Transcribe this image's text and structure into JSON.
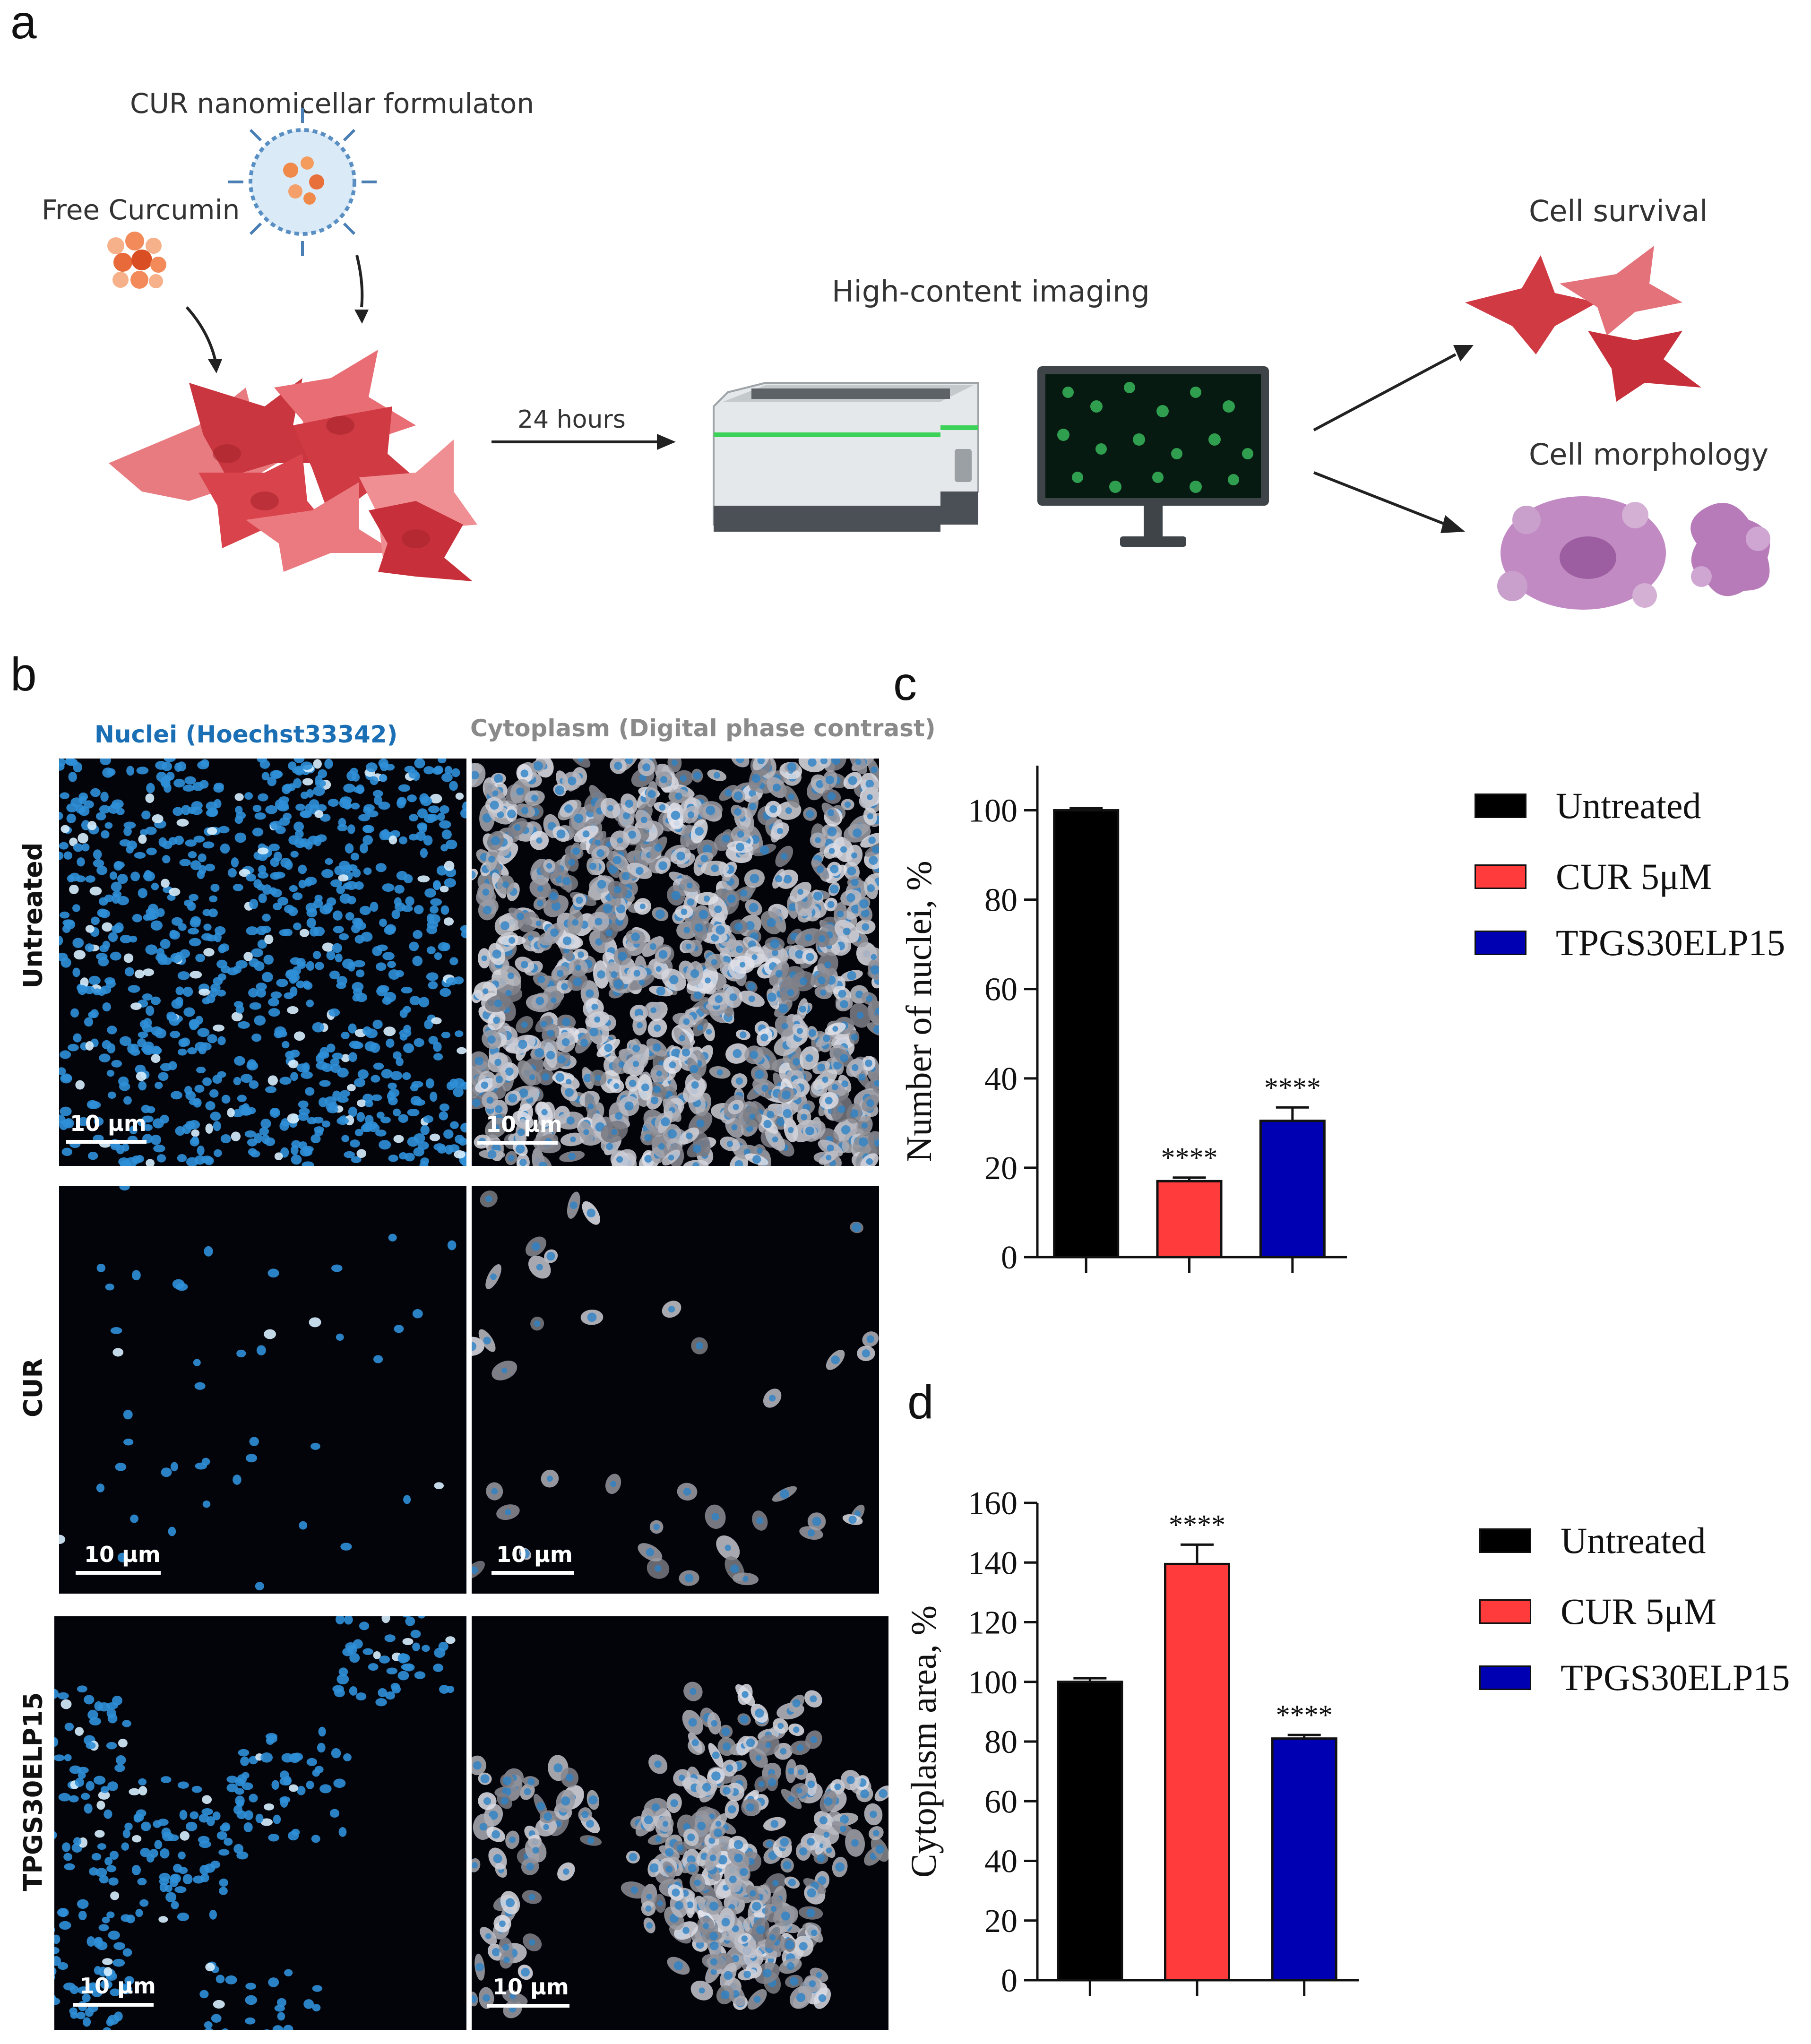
{
  "panel_letters": {
    "a": "a",
    "b": "b",
    "c": "c",
    "d": "d"
  },
  "panel_a": {
    "nano_label": "CUR nanomicellar formulaton",
    "free_label": "Free Curcumin",
    "time_label": "24 hours",
    "imaging_label": "High-content imaging",
    "survival_label": "Cell survival",
    "morphology_label": "Cell morphology"
  },
  "panel_b": {
    "col_nuclei": "Nuclei (Hoechst33342)",
    "col_cyto": "Cytoplasm (Digital phase contrast)",
    "rows": [
      "Untreated",
      "CUR",
      "TPGS30ELP15"
    ],
    "scale": "10 µm",
    "colors": {
      "nuclei_header": "#1a6fb5",
      "cyto_header": "#8a8a8a"
    }
  },
  "chart_data": [
    {
      "type": "bar",
      "panel": "c",
      "categories": [
        "Untreated",
        "CUR 5μM",
        "TPGS30ELP15"
      ],
      "values": [
        100,
        17,
        30.5
      ],
      "errors": [
        0.5,
        0.8,
        3
      ],
      "annotations": [
        "",
        "****",
        "****"
      ],
      "colors": [
        "#000000",
        "#ff3b3b",
        "#0000b3"
      ],
      "ylabel": "Number of nuclei, %",
      "ylim": [
        0,
        110
      ],
      "yticks": [
        0,
        20,
        40,
        60,
        80,
        100
      ],
      "legend": [
        "Untreated",
        "CUR 5μM",
        "TPGS30ELP15"
      ],
      "legend_position": "top-right"
    },
    {
      "type": "bar",
      "panel": "d",
      "categories": [
        "Untreated",
        "CUR 5μM",
        "TPGS30ELP15"
      ],
      "values": [
        100,
        139.5,
        81
      ],
      "errors": [
        1.2,
        6.5,
        1.2
      ],
      "annotations": [
        "",
        "****",
        "****"
      ],
      "colors": [
        "#000000",
        "#ff3b3b",
        "#0000b3"
      ],
      "ylabel": "Cytoplasm area, %",
      "ylim": [
        0,
        160
      ],
      "yticks": [
        0,
        20,
        40,
        60,
        80,
        100,
        120,
        140,
        160
      ],
      "legend": [
        "Untreated",
        "CUR 5μM",
        "TPGS30ELP15"
      ],
      "legend_position": "top-right"
    }
  ]
}
